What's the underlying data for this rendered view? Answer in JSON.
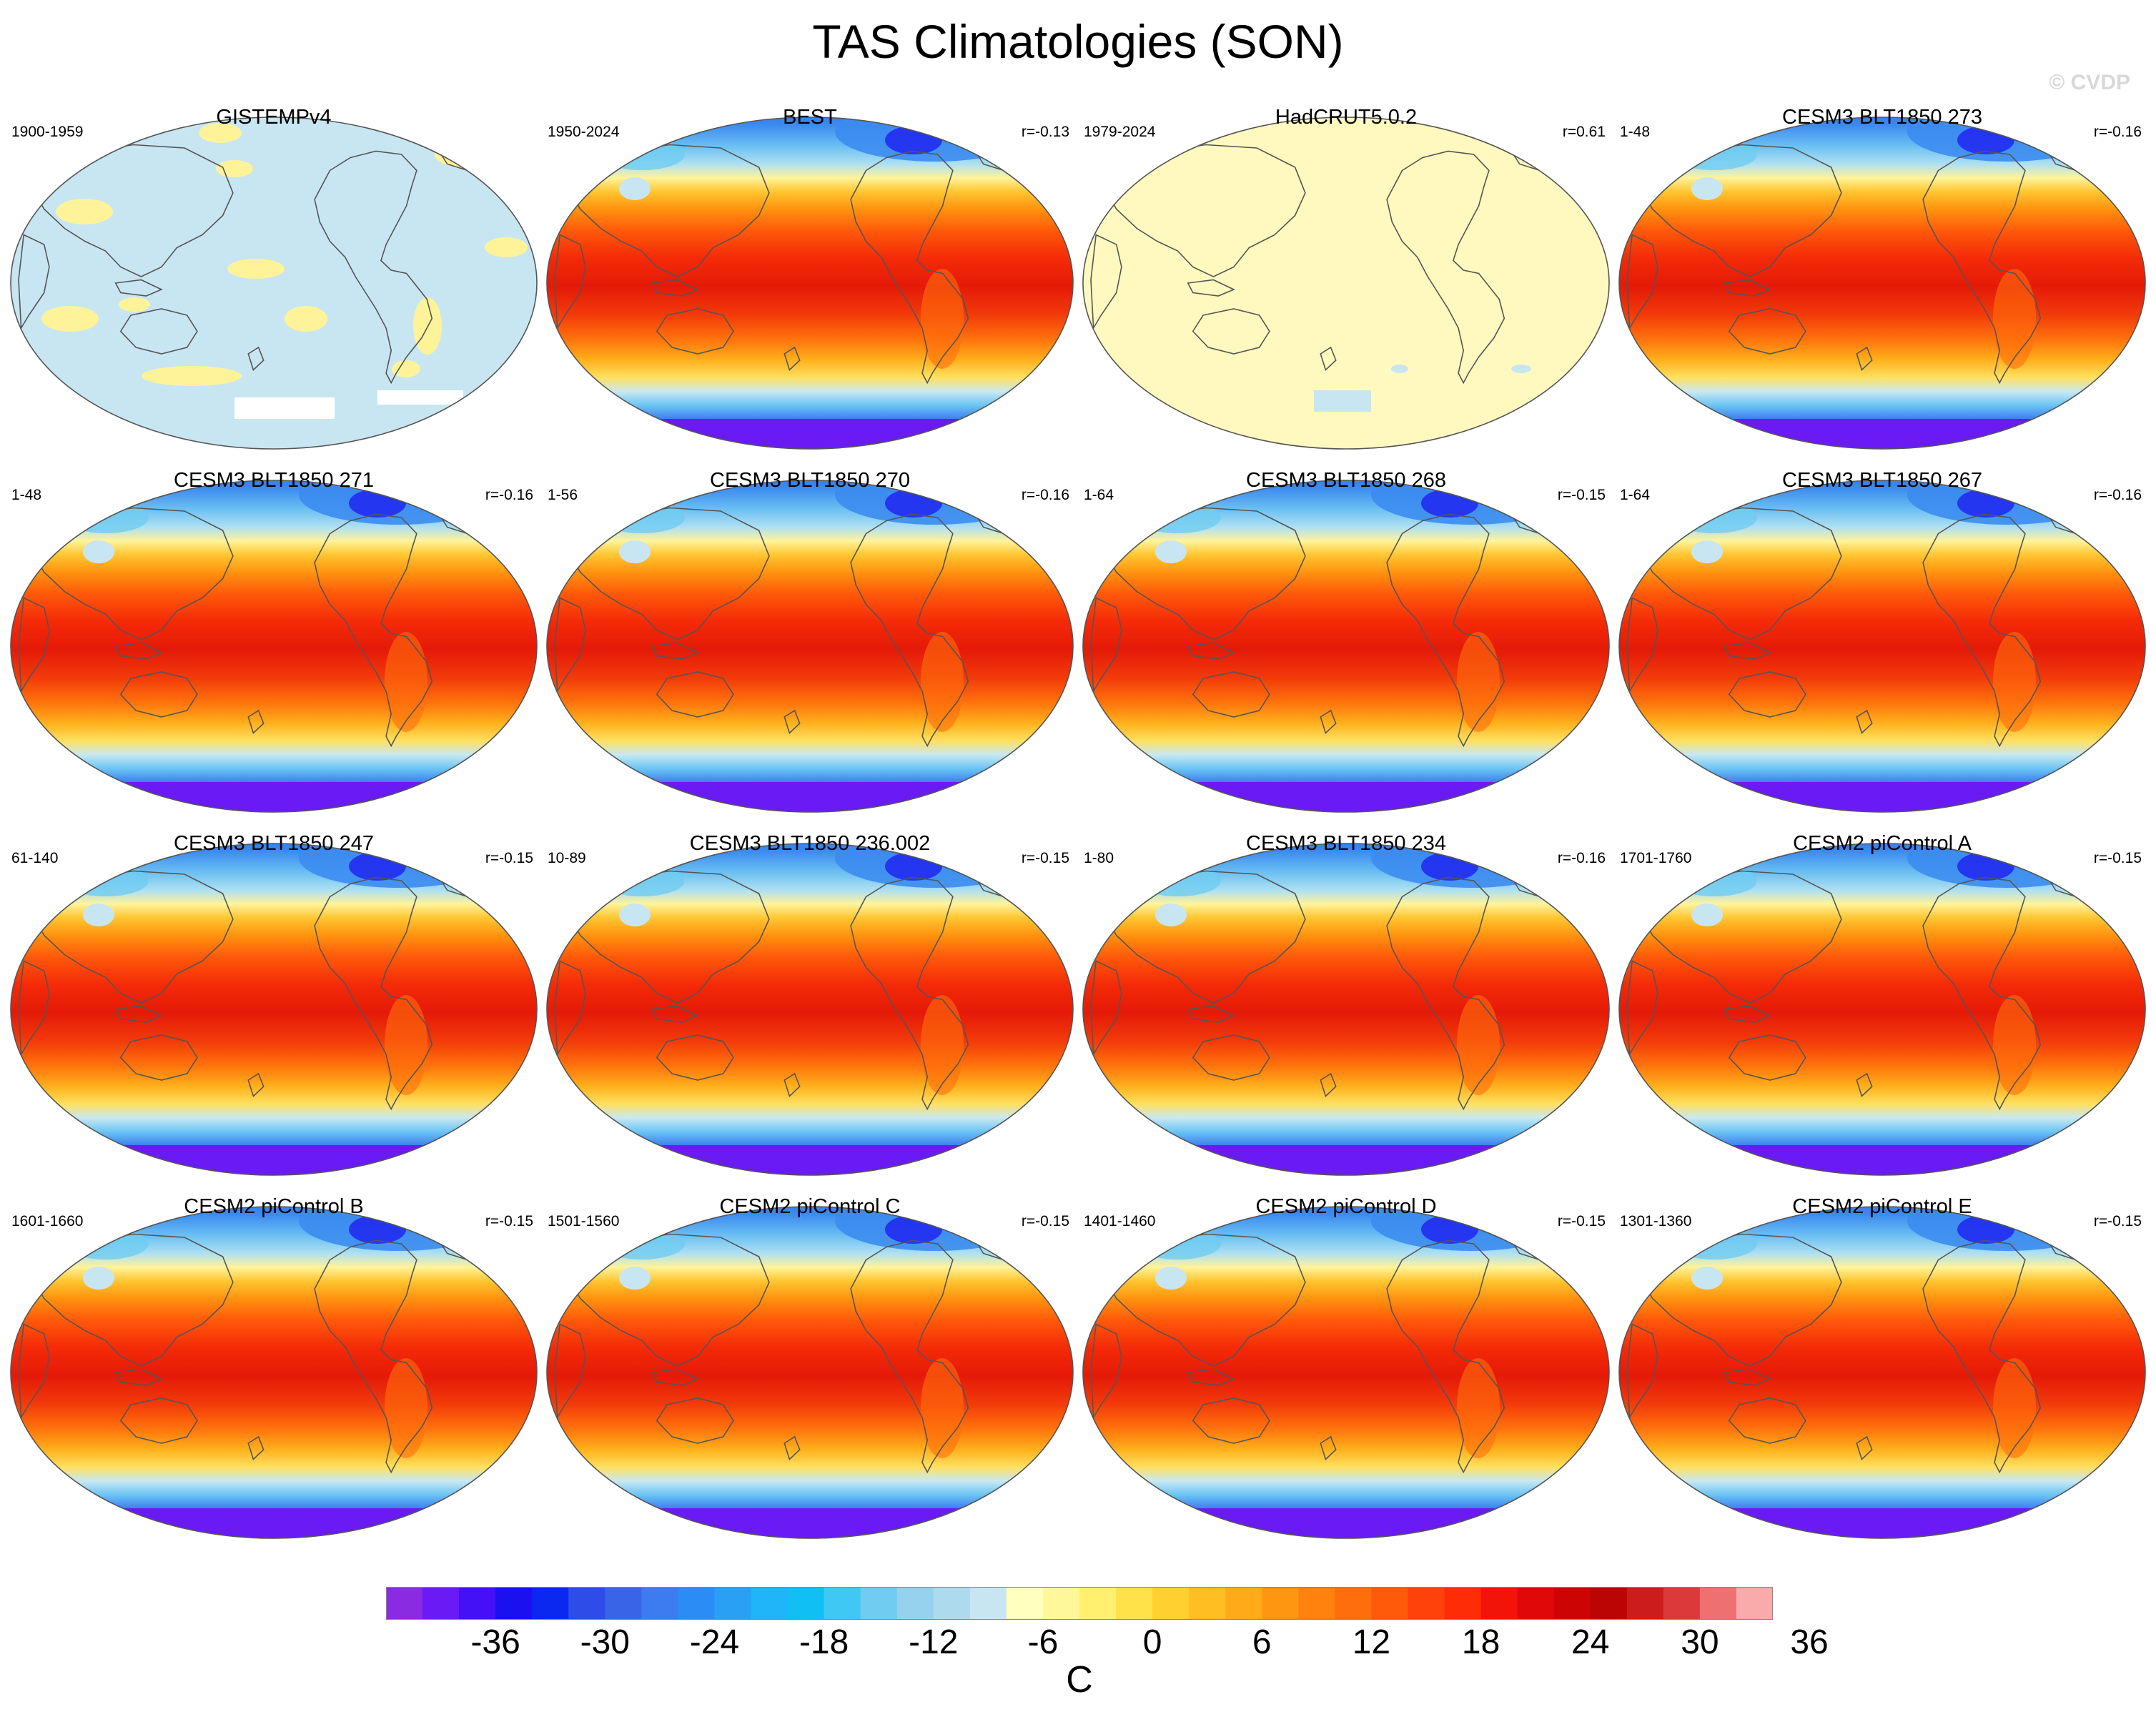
{
  "figure": {
    "title": "TAS Climatologies (SON)",
    "watermark": "© CVDP"
  },
  "chart_data": {
    "type": "heatmap",
    "title": "TAS Climatologies (SON)",
    "layout": "4x4 panel grid of global map climatologies",
    "projection": "Robinson, Pacific-centered",
    "variable": "TAS",
    "panels": [
      {
        "title": "GISTEMPv4",
        "period": "1900-1959",
        "corr": "",
        "style": "obs-sparse"
      },
      {
        "title": "BEST",
        "period": "1950-2024",
        "corr": "r=-0.13",
        "style": "full"
      },
      {
        "title": "HadCRUT5.0.2",
        "period": "1979-2024",
        "corr": "r=0.61",
        "style": "obs-flat"
      },
      {
        "title": "CESM3 BLT1850 273",
        "period": "1-48",
        "corr": "r=-0.16",
        "style": "full"
      },
      {
        "title": "CESM3 BLT1850 271",
        "period": "1-48",
        "corr": "r=-0.16",
        "style": "full"
      },
      {
        "title": "CESM3 BLT1850 270",
        "period": "1-56",
        "corr": "r=-0.16",
        "style": "full"
      },
      {
        "title": "CESM3 BLT1850 268",
        "period": "1-64",
        "corr": "r=-0.15",
        "style": "full"
      },
      {
        "title": "CESM3 BLT1850 267",
        "period": "1-64",
        "corr": "r=-0.16",
        "style": "full"
      },
      {
        "title": "CESM3 BLT1850 247",
        "period": "61-140",
        "corr": "r=-0.15",
        "style": "full"
      },
      {
        "title": "CESM3 BLT1850 236.002",
        "period": "10-89",
        "corr": "r=-0.15",
        "style": "full"
      },
      {
        "title": "CESM3 BLT1850 234",
        "period": "1-80",
        "corr": "r=-0.16",
        "style": "full"
      },
      {
        "title": "CESM2 piControl A",
        "period": "1701-1760",
        "corr": "r=-0.15",
        "style": "full"
      },
      {
        "title": "CESM2 piControl B",
        "period": "1601-1660",
        "corr": "r=-0.15",
        "style": "full"
      },
      {
        "title": "CESM2 piControl C",
        "period": "1501-1560",
        "corr": "r=-0.15",
        "style": "full"
      },
      {
        "title": "CESM2 piControl D",
        "period": "1401-1460",
        "corr": "r=-0.15",
        "style": "full"
      },
      {
        "title": "CESM2 piControl E",
        "period": "1301-1360",
        "corr": "r=-0.15",
        "style": "full"
      }
    ],
    "colorbar": {
      "units": "C",
      "tick_values": [
        -36,
        -30,
        -24,
        -18,
        -12,
        -6,
        0,
        6,
        12,
        18,
        24,
        30,
        36
      ],
      "tick_labels": [
        "-36",
        "-30",
        "-24",
        "-18",
        "-12",
        "-6",
        "0",
        "6",
        "12",
        "18",
        "24",
        "30",
        "36"
      ],
      "range": [
        -42,
        42
      ],
      "level_interval": 2,
      "colors": [
        "#8a2be2",
        "#6a1af5",
        "#4410f5",
        "#1a10f0",
        "#0a28f0",
        "#2e4ce8",
        "#3a64e8",
        "#3c7cf0",
        "#2c8cf5",
        "#2aa0f5",
        "#20b4f8",
        "#10c0f5",
        "#40c8f5",
        "#70ccf0",
        "#96d2ee",
        "#aedaee",
        "#c8e6f2",
        "#ffffc0",
        "#fff89a",
        "#fff070",
        "#ffe24a",
        "#ffd030",
        "#ffbe22",
        "#ffaa18",
        "#ff9612",
        "#ff820e",
        "#ff6e0c",
        "#ff5a0a",
        "#ff420a",
        "#ff2c08",
        "#f21408",
        "#e00808",
        "#cc0404",
        "#bb0404",
        "#cc1c1c",
        "#dc3a3a",
        "#ee7070",
        "#f9aaaa"
      ]
    }
  }
}
